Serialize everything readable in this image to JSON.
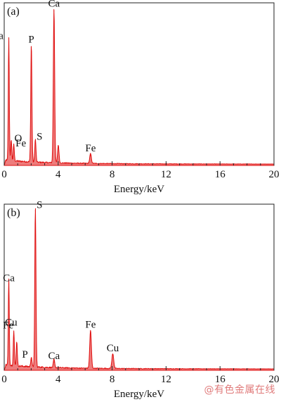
{
  "watermark": "@有色金属在线",
  "chart_data": [
    {
      "type": "line",
      "panel_label": "(a)",
      "xlabel": "Energy/keV",
      "ylabel": "",
      "xlim": [
        0,
        20
      ],
      "ylim": [
        0,
        1
      ],
      "x_ticks": [
        0,
        4,
        8,
        12,
        16,
        20
      ],
      "grid": false,
      "line_color": "#e01010",
      "peaks": [
        {
          "label": "Ca",
          "x": 0.34,
          "y": 0.76
        },
        {
          "label": "O",
          "x": 0.52,
          "y": 0.13
        },
        {
          "label": "Fe",
          "x": 0.71,
          "y": 0.1
        },
        {
          "label": "P",
          "x": 2.01,
          "y": 0.73
        },
        {
          "label": "S",
          "x": 2.31,
          "y": 0.14
        },
        {
          "label": "Ca",
          "x": 3.69,
          "y": 0.95
        },
        {
          "label": "",
          "x": 4.01,
          "y": 0.11
        },
        {
          "label": "Fe",
          "x": 6.4,
          "y": 0.06
        }
      ]
    },
    {
      "type": "line",
      "panel_label": "(b)",
      "xlabel": "Energy/keV",
      "ylabel": "",
      "xlim": [
        0,
        20
      ],
      "ylim": [
        0,
        1
      ],
      "x_ticks": [
        0,
        4,
        8,
        12,
        16,
        20
      ],
      "grid": false,
      "line_color": "#e01010",
      "peaks": [
        {
          "label": "Ca",
          "x": 0.34,
          "y": 0.52
        },
        {
          "label": "Cu",
          "x": 0.93,
          "y": 0.15
        },
        {
          "label": "Fe",
          "x": 0.71,
          "y": 0.21
        },
        {
          "label": "P",
          "x": 2.01,
          "y": 0.06
        },
        {
          "label": "S",
          "x": 2.31,
          "y": 0.96
        },
        {
          "label": "Ca",
          "x": 3.69,
          "y": 0.05
        },
        {
          "label": "Fe",
          "x": 6.4,
          "y": 0.23
        },
        {
          "label": "Cu",
          "x": 8.05,
          "y": 0.09
        }
      ]
    }
  ]
}
